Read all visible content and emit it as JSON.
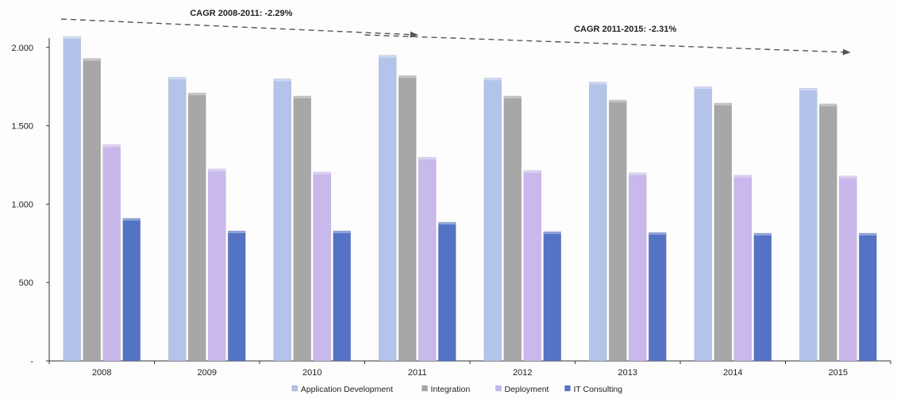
{
  "chart_data": {
    "type": "bar",
    "title": "",
    "xlabel": "",
    "ylabel": "",
    "categories": [
      "2008",
      "2009",
      "2010",
      "2011",
      "2012",
      "2013",
      "2014",
      "2015"
    ],
    "ylim": [
      0,
      2100
    ],
    "yticks": [
      0,
      500,
      1000,
      1500,
      2000
    ],
    "ytick_labels": [
      "-",
      "500",
      "1.000",
      "1.500",
      "2.000"
    ],
    "grid": false,
    "legend_position": "bottom",
    "series": [
      {
        "name": "Application Development",
        "color": "#b3c3ea",
        "values": [
          2070,
          1810,
          1800,
          1950,
          1805,
          1780,
          1750,
          1740
        ]
      },
      {
        "name": "Integration",
        "color": "#a7a7a7",
        "values": [
          1930,
          1710,
          1690,
          1820,
          1690,
          1665,
          1645,
          1640
        ]
      },
      {
        "name": "Deployment",
        "color": "#c9b8ec",
        "values": [
          1380,
          1225,
          1205,
          1300,
          1215,
          1200,
          1185,
          1180
        ]
      },
      {
        "name": "IT Consulting",
        "color": "#5573c4",
        "values": [
          910,
          830,
          830,
          885,
          825,
          820,
          815,
          815
        ]
      }
    ],
    "annotations": [
      {
        "text": "CAGR 2008-2011:  -2.29%",
        "from": "2008",
        "to": "2011"
      },
      {
        "text": "CAGR 2011-2015:  -2.31%",
        "from": "2011",
        "to": "2015"
      }
    ]
  }
}
